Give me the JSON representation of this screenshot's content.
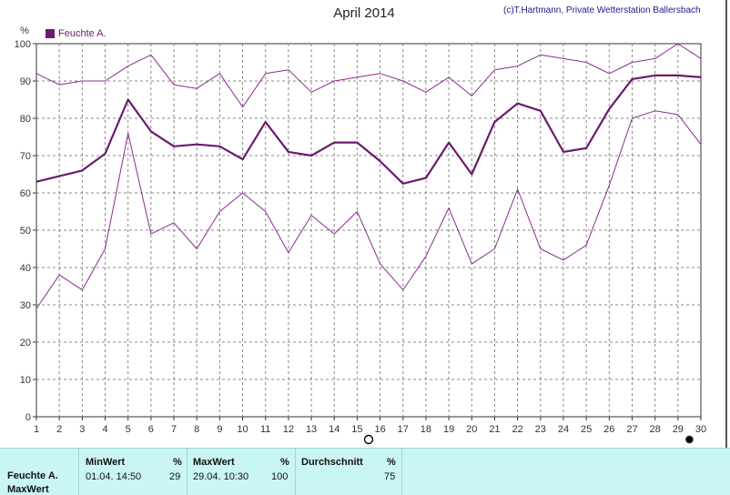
{
  "title": "April 2014",
  "credit": "(c)T.Hartmann, Private Wetterstation Ballersbach",
  "legend": {
    "label": "Feuchte A."
  },
  "chart_data": {
    "type": "line",
    "title": "April 2014",
    "ylabel": "%",
    "xlabel": "",
    "ylim": [
      0,
      100
    ],
    "yticks": [
      0,
      10,
      20,
      30,
      40,
      50,
      60,
      70,
      80,
      90,
      100
    ],
    "x": [
      1,
      2,
      3,
      4,
      5,
      6,
      7,
      8,
      9,
      10,
      11,
      12,
      13,
      14,
      15,
      16,
      17,
      18,
      19,
      20,
      21,
      22,
      23,
      24,
      25,
      26,
      27,
      28,
      29,
      30
    ],
    "grid": true,
    "series": [
      {
        "name": "Feuchte A.",
        "role": "mean",
        "color": "#6a1b6e",
        "values": [
          63,
          64.5,
          66,
          70.5,
          85,
          76.5,
          72.5,
          73,
          72.5,
          69,
          79,
          71,
          70,
          73.5,
          73.5,
          68.5,
          62.5,
          64,
          73.5,
          65,
          79,
          84,
          82,
          71,
          72,
          82.5,
          90.5,
          91.5,
          91.5,
          91
        ]
      },
      {
        "role": "max",
        "color": "#8a2b90",
        "values": [
          92,
          89,
          90,
          90,
          94,
          97,
          89,
          88,
          92,
          83,
          92,
          93,
          87,
          90,
          91,
          92,
          90,
          87,
          91,
          86,
          93,
          94,
          97,
          96,
          95,
          92,
          95,
          96,
          100,
          96
        ]
      },
      {
        "role": "min",
        "color": "#8a2b90",
        "values": [
          29,
          38,
          34,
          45,
          76,
          49,
          52,
          45,
          55,
          60,
          55,
          44,
          54,
          49,
          55,
          41,
          34,
          43,
          56,
          41,
          45,
          61,
          45,
          42,
          46,
          62,
          80,
          82,
          81,
          73
        ]
      }
    ],
    "markers": [
      {
        "x": 15.5,
        "style": "open-circle"
      },
      {
        "x": 29.5,
        "style": "filled-circle"
      }
    ]
  },
  "stats": {
    "row_label": "Feuchte A.",
    "row_label_2": "MaxWert",
    "min": {
      "header": "MinWert",
      "unit": "%",
      "date": "01.04.  14:50",
      "value": "29"
    },
    "max": {
      "header": "MaxWert",
      "unit": "%",
      "date": "29.04.  10:30",
      "value": "100"
    },
    "avg": {
      "header": "Durchschnitt",
      "unit": "%",
      "value": "75"
    }
  }
}
